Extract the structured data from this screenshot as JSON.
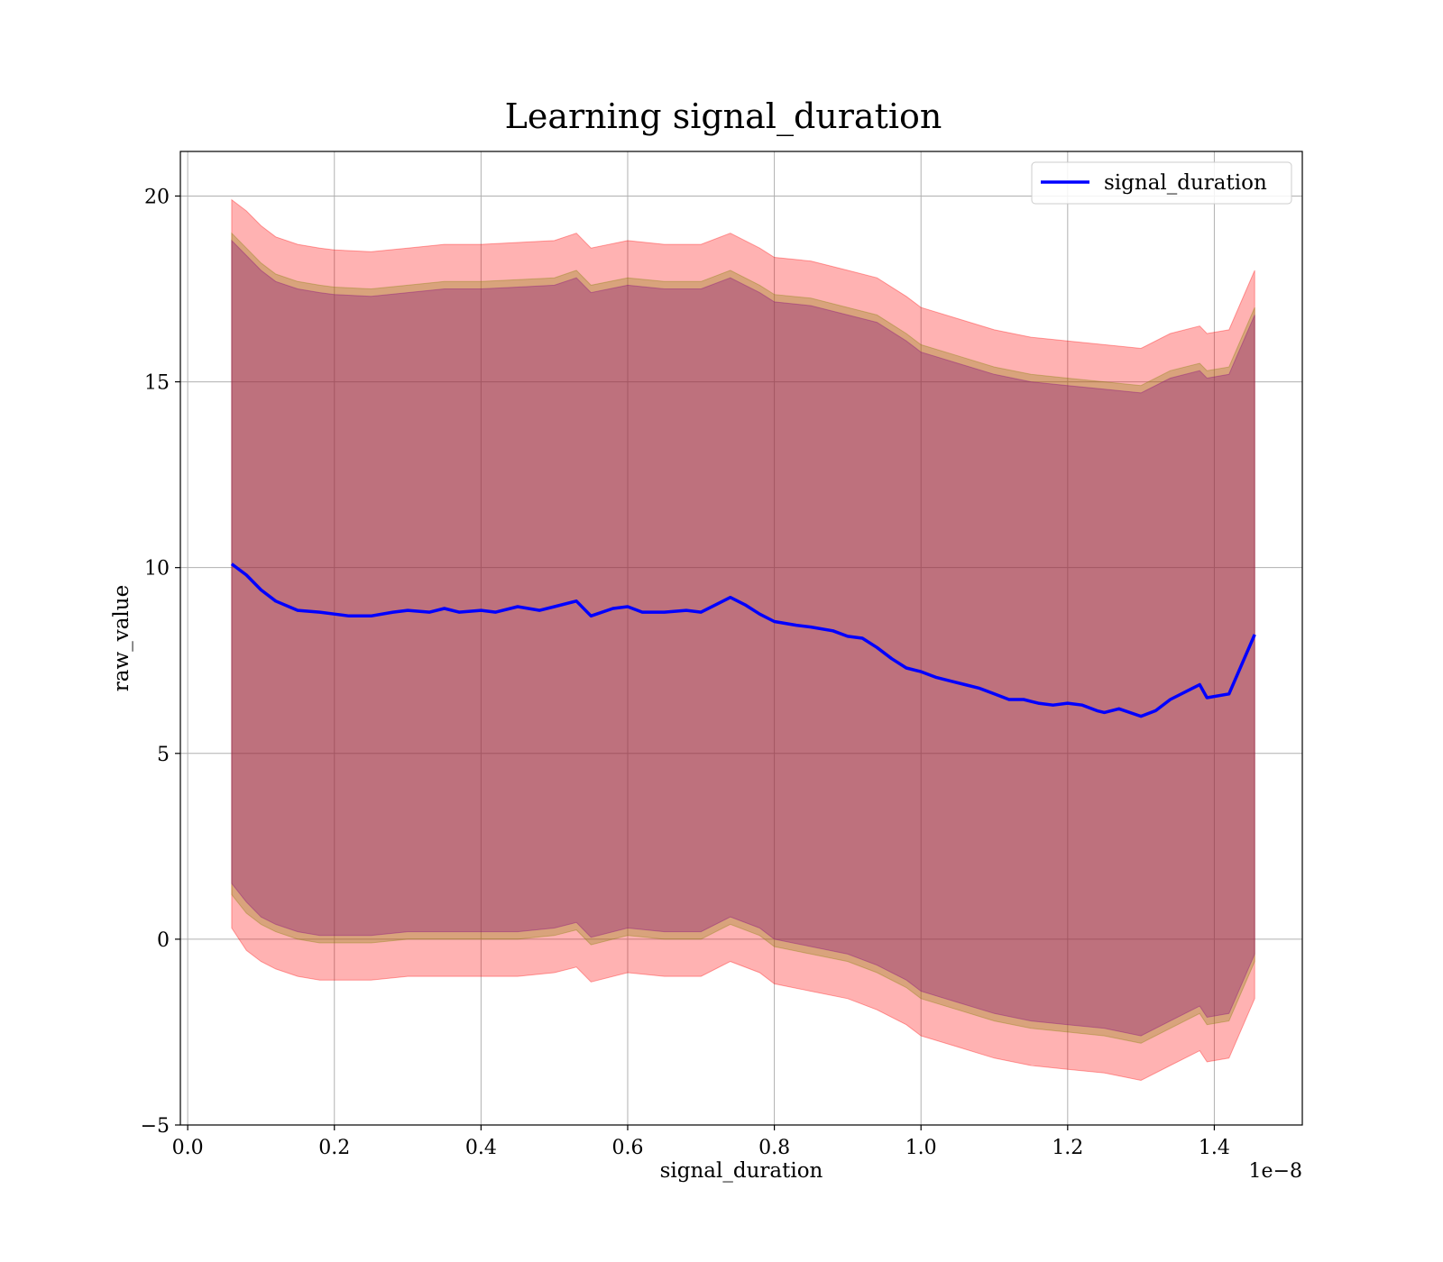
{
  "chart_data": {
    "type": "line",
    "title": "Learning signal_duration",
    "xlabel": "signal_duration",
    "ylabel": "raw_value",
    "x_offset_text": "1e−8",
    "xlim": [
      -0.01,
      1.52
    ],
    "ylim": [
      -5.0,
      21.2
    ],
    "xticks": [
      0.0,
      0.2,
      0.4,
      0.6,
      0.8,
      1.0,
      1.2,
      1.4
    ],
    "xtick_labels": [
      "0.0",
      "0.2",
      "0.4",
      "0.6",
      "0.8",
      "1.0",
      "1.2",
      "1.4"
    ],
    "yticks": [
      -5,
      0,
      5,
      10,
      15,
      20
    ],
    "ytick_labels": [
      "−5",
      "0",
      "5",
      "10",
      "15",
      "20"
    ],
    "grid": true,
    "legend_position": "top-right",
    "series": [
      {
        "name": "signal_duration",
        "color": "#0000ff",
        "x": [
          0.06,
          0.08,
          0.1,
          0.12,
          0.15,
          0.18,
          0.2,
          0.22,
          0.25,
          0.28,
          0.3,
          0.33,
          0.35,
          0.37,
          0.4,
          0.42,
          0.45,
          0.48,
          0.5,
          0.53,
          0.55,
          0.58,
          0.6,
          0.62,
          0.65,
          0.68,
          0.7,
          0.72,
          0.74,
          0.76,
          0.78,
          0.8,
          0.83,
          0.85,
          0.88,
          0.9,
          0.92,
          0.94,
          0.96,
          0.98,
          1.0,
          1.02,
          1.04,
          1.06,
          1.08,
          1.1,
          1.12,
          1.14,
          1.16,
          1.18,
          1.2,
          1.22,
          1.24,
          1.25,
          1.27,
          1.3,
          1.32,
          1.34,
          1.38,
          1.39,
          1.42,
          1.455
        ],
        "values": [
          10.1,
          9.8,
          9.4,
          9.1,
          8.85,
          8.8,
          8.75,
          8.7,
          8.7,
          8.8,
          8.85,
          8.8,
          8.9,
          8.8,
          8.85,
          8.8,
          8.95,
          8.85,
          8.95,
          9.1,
          8.7,
          8.9,
          8.95,
          8.8,
          8.8,
          8.85,
          8.8,
          9.0,
          9.2,
          9.0,
          8.75,
          8.55,
          8.45,
          8.4,
          8.3,
          8.15,
          8.1,
          7.85,
          7.55,
          7.3,
          7.2,
          7.05,
          6.95,
          6.85,
          6.75,
          6.6,
          6.45,
          6.45,
          6.35,
          6.3,
          6.35,
          6.3,
          6.15,
          6.1,
          6.2,
          6.0,
          6.15,
          6.45,
          6.85,
          6.5,
          6.6,
          8.2
        ]
      }
    ],
    "bands": [
      {
        "color": "#ff0000",
        "opacity": 0.3,
        "x": [
          0.06,
          0.08,
          0.1,
          0.12,
          0.15,
          0.18,
          0.2,
          0.25,
          0.3,
          0.35,
          0.4,
          0.45,
          0.5,
          0.53,
          0.55,
          0.6,
          0.65,
          0.7,
          0.74,
          0.78,
          0.8,
          0.85,
          0.9,
          0.94,
          0.98,
          1.0,
          1.05,
          1.1,
          1.15,
          1.2,
          1.25,
          1.3,
          1.34,
          1.38,
          1.39,
          1.42,
          1.455
        ],
        "upper": [
          19.9,
          19.6,
          19.2,
          18.9,
          18.7,
          18.6,
          18.55,
          18.5,
          18.6,
          18.7,
          18.7,
          18.75,
          18.8,
          19.0,
          18.6,
          18.8,
          18.7,
          18.7,
          19.0,
          18.6,
          18.35,
          18.25,
          18.0,
          17.8,
          17.3,
          17.0,
          16.7,
          16.4,
          16.2,
          16.1,
          16.0,
          15.9,
          16.3,
          16.5,
          16.3,
          16.4,
          18.0
        ],
        "lower": [
          0.3,
          -0.3,
          -0.6,
          -0.8,
          -1.0,
          -1.1,
          -1.1,
          -1.1,
          -1.0,
          -1.0,
          -1.0,
          -1.0,
          -0.9,
          -0.75,
          -1.15,
          -0.9,
          -1.0,
          -1.0,
          -0.6,
          -0.9,
          -1.2,
          -1.4,
          -1.6,
          -1.9,
          -2.3,
          -2.6,
          -2.9,
          -3.2,
          -3.4,
          -3.5,
          -3.6,
          -3.8,
          -3.4,
          -3.0,
          -3.3,
          -3.2,
          -1.6
        ]
      },
      {
        "color": "#808000",
        "opacity": 0.3,
        "x": [
          0.06,
          0.08,
          0.1,
          0.12,
          0.15,
          0.18,
          0.2,
          0.25,
          0.3,
          0.35,
          0.4,
          0.45,
          0.5,
          0.53,
          0.55,
          0.6,
          0.65,
          0.7,
          0.74,
          0.78,
          0.8,
          0.85,
          0.9,
          0.94,
          0.98,
          1.0,
          1.05,
          1.1,
          1.15,
          1.2,
          1.25,
          1.3,
          1.34,
          1.38,
          1.39,
          1.42,
          1.455
        ],
        "upper": [
          19.0,
          18.6,
          18.2,
          17.9,
          17.7,
          17.6,
          17.55,
          17.5,
          17.6,
          17.7,
          17.7,
          17.75,
          17.8,
          18.0,
          17.6,
          17.8,
          17.7,
          17.7,
          18.0,
          17.6,
          17.35,
          17.25,
          17.0,
          16.8,
          16.3,
          16.0,
          15.7,
          15.4,
          15.2,
          15.1,
          15.0,
          14.9,
          15.3,
          15.5,
          15.3,
          15.4,
          17.0
        ],
        "lower": [
          1.2,
          0.7,
          0.4,
          0.2,
          0.0,
          -0.1,
          -0.1,
          -0.1,
          0.0,
          0.0,
          0.0,
          0.0,
          0.1,
          0.25,
          -0.15,
          0.1,
          0.0,
          0.0,
          0.4,
          0.1,
          -0.2,
          -0.4,
          -0.6,
          -0.9,
          -1.3,
          -1.6,
          -1.9,
          -2.2,
          -2.4,
          -2.5,
          -2.6,
          -2.8,
          -2.4,
          -2.0,
          -2.3,
          -2.2,
          -0.6
        ]
      },
      {
        "color": "#800080",
        "opacity": 0.3,
        "x": [
          0.06,
          0.08,
          0.1,
          0.12,
          0.15,
          0.18,
          0.2,
          0.25,
          0.3,
          0.35,
          0.4,
          0.45,
          0.5,
          0.53,
          0.55,
          0.6,
          0.65,
          0.7,
          0.74,
          0.78,
          0.8,
          0.85,
          0.9,
          0.94,
          0.98,
          1.0,
          1.05,
          1.1,
          1.15,
          1.2,
          1.25,
          1.3,
          1.34,
          1.38,
          1.39,
          1.42,
          1.455
        ],
        "upper": [
          18.8,
          18.4,
          18.0,
          17.7,
          17.5,
          17.4,
          17.35,
          17.3,
          17.4,
          17.5,
          17.5,
          17.55,
          17.6,
          17.8,
          17.4,
          17.6,
          17.5,
          17.5,
          17.8,
          17.4,
          17.15,
          17.05,
          16.8,
          16.6,
          16.1,
          15.8,
          15.5,
          15.2,
          15.0,
          14.9,
          14.8,
          14.7,
          15.1,
          15.3,
          15.1,
          15.2,
          16.8
        ],
        "lower": [
          1.5,
          1.0,
          0.6,
          0.4,
          0.2,
          0.1,
          0.1,
          0.1,
          0.2,
          0.2,
          0.2,
          0.2,
          0.3,
          0.45,
          0.05,
          0.3,
          0.2,
          0.2,
          0.6,
          0.3,
          0.0,
          -0.2,
          -0.4,
          -0.7,
          -1.1,
          -1.4,
          -1.7,
          -2.0,
          -2.2,
          -2.3,
          -2.4,
          -2.6,
          -2.2,
          -1.8,
          -2.1,
          -2.0,
          -0.4
        ]
      }
    ]
  }
}
